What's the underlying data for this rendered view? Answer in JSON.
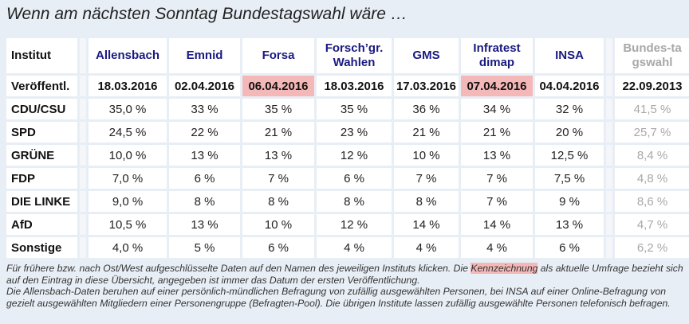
{
  "title": "Wenn am nächsten Sonntag Bundestagswahl wäre …",
  "header": {
    "label": "Institut",
    "institutes": [
      "Allensbach",
      "Emnid",
      "Forsa",
      "Forsch’gr. Wahlen",
      "GMS",
      "Infratest dimap",
      "INSA"
    ],
    "reference": "Bundes-tagswahl"
  },
  "dates": {
    "label": "Veröffentl.",
    "values": [
      "18.03.2016",
      "02.04.2016",
      "06.04.2016",
      "18.03.2016",
      "17.03.2016",
      "07.04.2016",
      "04.04.2016"
    ],
    "reference": "22.09.2013",
    "highlighted": [
      2,
      5
    ]
  },
  "rows": [
    {
      "party": "CDU/CSU",
      "values": [
        "35,0 %",
        "33 %",
        "35 %",
        "35 %",
        "36 %",
        "34 %",
        "32 %"
      ],
      "reference": "41,5 %"
    },
    {
      "party": "SPD",
      "values": [
        "24,5 %",
        "22 %",
        "21 %",
        "23 %",
        "21 %",
        "21 %",
        "20 %"
      ],
      "reference": "25,7 %"
    },
    {
      "party": "GRÜNE",
      "values": [
        "10,0 %",
        "13 %",
        "13 %",
        "12 %",
        "10 %",
        "13 %",
        "12,5 %"
      ],
      "reference": "8,4 %"
    },
    {
      "party": "FDP",
      "values": [
        "7,0 %",
        "6 %",
        "7 %",
        "6 %",
        "7 %",
        "7 %",
        "7,5 %"
      ],
      "reference": "4,8 %"
    },
    {
      "party": "DIE LINKE",
      "values": [
        "9,0 %",
        "8 %",
        "8 %",
        "8 %",
        "8 %",
        "7 %",
        "9 %"
      ],
      "reference": "8,6 %"
    },
    {
      "party": "AfD",
      "values": [
        "10,5 %",
        "13 %",
        "10 %",
        "12 %",
        "14 %",
        "14 %",
        "13 %"
      ],
      "reference": "4,7 %"
    },
    {
      "party": "Sonstige",
      "values": [
        "4,0 %",
        "5 %",
        "6 %",
        "4 %",
        "4 %",
        "4 %",
        "6 %"
      ],
      "reference": "6,2 %"
    }
  ],
  "notes": {
    "p1_before": "Für frühere bzw. nach Ost/West aufgeschlüsselte Daten auf den Namen des jeweiligen Instituts klicken. Die ",
    "p1_mark": "Kennzeichnung",
    "p1_after": " als aktuelle Umfrage bezieht sich auf den Eintrag in diese Übersicht, angegeben ist immer das Datum der ersten Veröffentlichung.",
    "p2": "Die Allensbach-Daten beruhen auf einer persönlich-mündlichen Befragung von zufällig ausgewählten Personen, bei INSA auf einer Online-Befragung von gezielt ausgewählten Mitgliedern einer Personengruppe (Befragten-Pool). Die übrigen Institute lassen zufällig ausgewählte Personen telefonisch befragen."
  },
  "colors": {
    "background": "#e8eef5",
    "highlight": "#f5b8b8",
    "institute": "#1a1a80",
    "reference": "#a8a8a8"
  }
}
